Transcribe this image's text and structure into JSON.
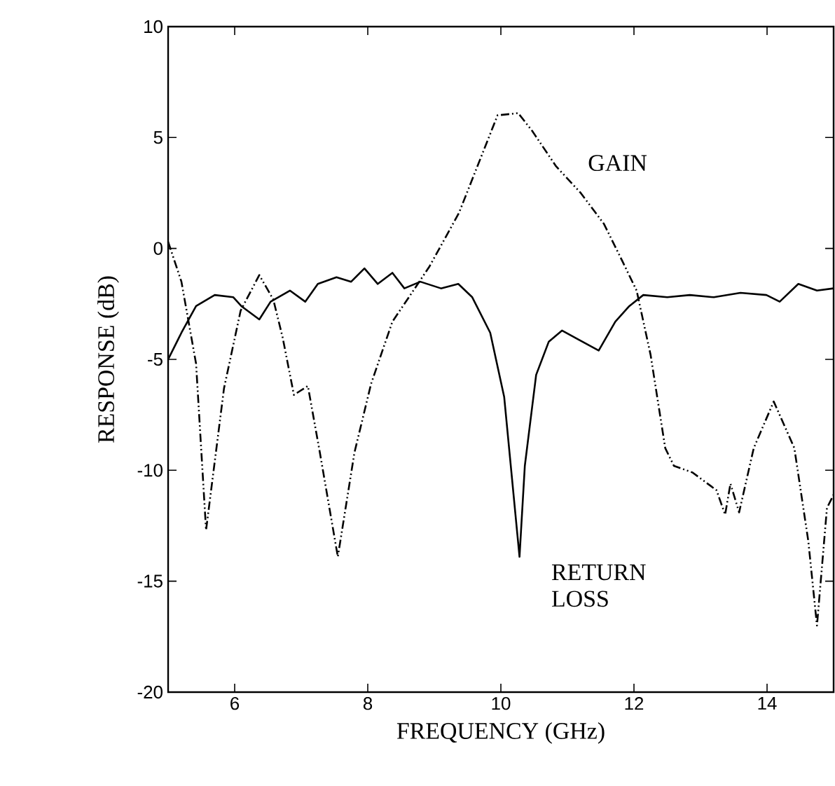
{
  "chart_data": {
    "type": "line",
    "xlabel": "FREQUENCY (GHz)",
    "ylabel": "RESPONSE (dB)",
    "xlim": [
      5,
      15
    ],
    "ylim": [
      -20,
      10
    ],
    "xticks": [
      6,
      8,
      10,
      12,
      14
    ],
    "yticks": [
      -20,
      -15,
      -10,
      -5,
      0,
      5,
      10
    ],
    "grid": false,
    "series": [
      {
        "color": "#000000",
        "line_style": "dashed",
        "x": [
          5.0,
          5.2,
          5.42,
          5.57,
          5.84,
          6.09,
          6.37,
          6.58,
          6.72,
          6.89,
          7.1,
          7.28,
          7.55,
          7.8,
          8.05,
          8.37,
          8.64,
          8.93,
          9.37,
          9.95,
          10.26,
          10.47,
          10.83,
          11.2,
          11.55,
          11.83,
          12.04,
          12.25,
          12.47,
          12.6,
          12.88,
          13.24,
          13.37,
          13.45,
          13.58,
          13.8,
          14.1,
          14.41,
          14.62,
          14.75,
          14.9,
          15.0
        ],
        "values": [
          0.3,
          -1.5,
          -5.2,
          -12.7,
          -6.3,
          -2.8,
          -1.2,
          -2.3,
          -4.0,
          -6.6,
          -6.2,
          -9.2,
          -13.9,
          -9.2,
          -6.1,
          -3.3,
          -2.1,
          -0.8,
          1.6,
          6.0,
          6.1,
          5.3,
          3.7,
          2.5,
          1.1,
          -0.6,
          -1.9,
          -4.8,
          -9.0,
          -9.8,
          -10.1,
          -10.9,
          -12.0,
          -10.6,
          -11.9,
          -9.0,
          -6.9,
          -9.0,
          -13.2,
          -17.0,
          -11.7,
          -11.1
        ]
      },
      {
        "color": "#000000",
        "line_style": "solid",
        "x": [
          5.0,
          5.2,
          5.42,
          5.7,
          5.98,
          6.1,
          6.37,
          6.54,
          6.83,
          7.06,
          7.25,
          7.53,
          7.75,
          7.95,
          8.15,
          8.37,
          8.55,
          8.79,
          9.1,
          9.36,
          9.57,
          9.84,
          10.05,
          10.28,
          10.36,
          10.53,
          10.72,
          10.92,
          11.16,
          11.47,
          11.72,
          11.93,
          12.14,
          12.5,
          12.84,
          13.2,
          13.6,
          13.99,
          14.19,
          14.47,
          14.75,
          15.0
        ],
        "values": [
          -5.0,
          -3.8,
          -2.6,
          -2.1,
          -2.2,
          -2.6,
          -3.2,
          -2.4,
          -1.9,
          -2.4,
          -1.6,
          -1.3,
          -1.5,
          -0.9,
          -1.6,
          -1.1,
          -1.8,
          -1.5,
          -1.8,
          -1.6,
          -2.2,
          -3.8,
          -6.7,
          -13.9,
          -9.8,
          -5.7,
          -4.2,
          -3.7,
          -4.1,
          -4.6,
          -3.3,
          -2.6,
          -2.1,
          -2.2,
          -2.1,
          -2.2,
          -2.0,
          -2.1,
          -2.4,
          -1.6,
          -1.9,
          -1.8
        ]
      }
    ],
    "annotations": [
      "GAIN",
      "RETURN LOSS"
    ]
  }
}
